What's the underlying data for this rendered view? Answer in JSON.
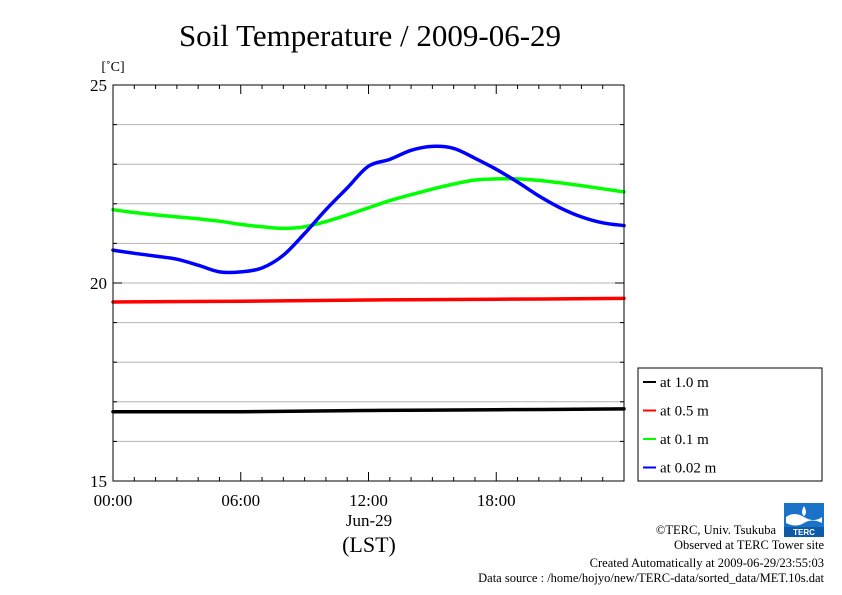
{
  "chart_data": {
    "type": "line",
    "title": "Soil Temperature / 2009-06-29",
    "ylabel": "[˚C]",
    "xlabel": "(LST)",
    "x_date_label": "Jun-29",
    "xlim": [
      0,
      24
    ],
    "ylim": [
      15,
      25
    ],
    "x_ticks": [
      {
        "value": 0,
        "label": "00:00"
      },
      {
        "value": 6,
        "label": "06:00"
      },
      {
        "value": 12,
        "label": "12:00"
      },
      {
        "value": 18,
        "label": "18:00"
      }
    ],
    "y_ticks": [
      {
        "value": 15,
        "label": "15"
      },
      {
        "value": 20,
        "label": "20"
      },
      {
        "value": 25,
        "label": "25"
      }
    ],
    "y_minor_ticks": [
      16,
      17,
      18,
      19,
      21,
      22,
      23,
      24
    ],
    "grid": true,
    "legend_position": "right-bottom",
    "series": [
      {
        "name": "at 1.0 m",
        "color": "#000000",
        "x": [
          0,
          6,
          12,
          18,
          24
        ],
        "y": [
          16.75,
          16.75,
          16.78,
          16.8,
          16.82
        ]
      },
      {
        "name": "at 0.5 m",
        "color": "#ff0000",
        "x": [
          0,
          6,
          12,
          18,
          24
        ],
        "y": [
          19.52,
          19.54,
          19.57,
          19.59,
          19.61
        ]
      },
      {
        "name": "at 0.1 m",
        "color": "#00ff00",
        "x": [
          0,
          1,
          2,
          3,
          4,
          5,
          6,
          7,
          8,
          9,
          10,
          11,
          12,
          13,
          14,
          15,
          16,
          17,
          18,
          19,
          20,
          21,
          22,
          23,
          24
        ],
        "y": [
          21.85,
          21.78,
          21.72,
          21.67,
          21.62,
          21.56,
          21.48,
          21.42,
          21.38,
          21.42,
          21.55,
          21.72,
          21.9,
          22.08,
          22.23,
          22.37,
          22.5,
          22.6,
          22.63,
          22.63,
          22.59,
          22.53,
          22.46,
          22.38,
          22.3
        ]
      },
      {
        "name": "at 0.02 m",
        "color": "#0000ff",
        "x": [
          0,
          1,
          2,
          3,
          4,
          5,
          6,
          7,
          8,
          9,
          10,
          11,
          12,
          13,
          14,
          15,
          16,
          17,
          18,
          19,
          20,
          21,
          22,
          23,
          24
        ],
        "y": [
          20.83,
          20.75,
          20.68,
          20.6,
          20.45,
          20.28,
          20.28,
          20.38,
          20.7,
          21.25,
          21.85,
          22.4,
          22.95,
          23.12,
          23.35,
          23.45,
          23.4,
          23.15,
          22.87,
          22.55,
          22.2,
          21.9,
          21.67,
          21.52,
          21.45
        ]
      }
    ]
  },
  "credits": {
    "copyright": "©TERC, Univ. Tsukuba",
    "observed": "Observed at TERC Tower site",
    "created": "Created Automatically at 2009-06-29/23:55:03",
    "source": "Data source : /home/hojyo/new/TERC-data/sorted_data/MET.10s.dat",
    "logo_text": "TERC"
  },
  "logo_color": "#1a73c8"
}
